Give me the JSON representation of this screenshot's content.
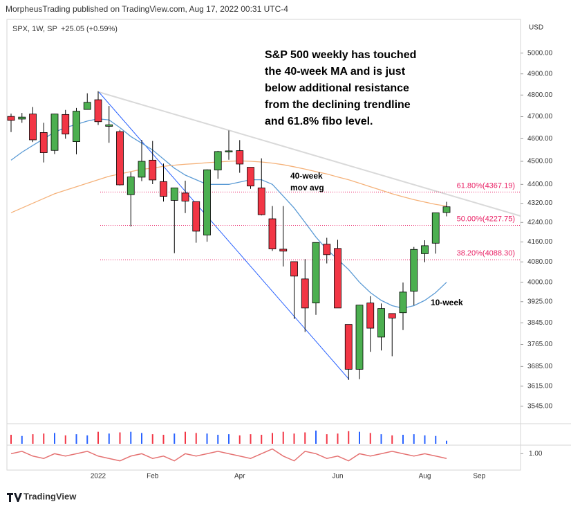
{
  "header": {
    "publisher": "MorpheusTrading published on TradingView.com, Aug 17, 2022 00:31 UTC-4",
    "symbol": "SPX, 1W, SP",
    "change": "+25.05 (+0.59%)",
    "currency": "USD",
    "footer": "TradingView"
  },
  "chart_data": {
    "type": "candlestick",
    "log_scale": true,
    "categories": [
      null,
      null,
      null,
      null,
      null,
      null,
      null,
      null,
      "2022",
      null,
      null,
      null,
      null,
      "Feb",
      null,
      null,
      null,
      null,
      null,
      null,
      null,
      "Apr",
      null,
      null,
      null,
      null,
      null,
      null,
      null,
      null,
      "Jun",
      null,
      null,
      null,
      null,
      null,
      null,
      null,
      "Aug",
      null,
      null,
      null,
      null,
      "Sep"
    ],
    "open": [
      4701,
      4689,
      4712,
      4628,
      4548,
      4710,
      4587,
      4733,
      4778,
      4656,
      4632,
      4356,
      4431,
      4505,
      4412,
      4332,
      4363,
      4327,
      4188,
      4462,
      4541,
      4547,
      4474,
      4385,
      4255,
      4131,
      4081,
      4013,
      3920,
      4151,
      4134,
      3839,
      3675,
      3920,
      3792,
      3880,
      3883,
      3965,
      4113,
      4155,
      4281,
      null,
      null,
      null
    ],
    "high": [
      4714,
      4717,
      4744,
      4672,
      4713,
      4731,
      4740,
      4808,
      4818,
      4749,
      4640,
      4453,
      4595,
      4590,
      4490,
      4385,
      4416,
      4327,
      4465,
      4546,
      4637,
      4594,
      4471,
      4513,
      4308,
      4308,
      4082,
      4091,
      4158,
      4177,
      4169,
      3838,
      3913,
      3946,
      3918,
      3880,
      3999,
      4140,
      4167,
      4280,
      4326,
      null,
      null,
      null
    ],
    "low": [
      4630,
      4672,
      4585,
      4495,
      4532,
      4600,
      4531,
      4733,
      4662,
      4582,
      4395,
      4223,
      4414,
      4401,
      4327,
      4115,
      4279,
      4157,
      4161,
      4424,
      4507,
      4450,
      4381,
      4269,
      4124,
      4062,
      3859,
      3811,
      3875,
      4074,
      3901,
      3637,
      3640,
      3738,
      3743,
      3722,
      3818,
      3911,
      4079,
      4113,
      4265,
      null,
      null,
      null
    ],
    "close": [
      4683,
      4698,
      4595,
      4538,
      4712,
      4621,
      4725,
      4766,
      4677,
      4663,
      4398,
      4432,
      4500,
      4419,
      4349,
      4385,
      4329,
      4204,
      4463,
      4543,
      4546,
      4488,
      4393,
      4272,
      4132,
      4123,
      4024,
      3901,
      4158,
      4109,
      3901,
      3675,
      3912,
      3825,
      3899,
      3863,
      3962,
      4130,
      4145,
      4280,
      4305,
      null,
      null,
      null
    ],
    "up_color": "#4caf50",
    "down_color": "#f23645",
    "series": [
      {
        "name": "10-week",
        "color": "#5b9bd5",
        "values": [
          4505,
          4540,
          4570,
          4600,
          4630,
          4650,
          4665,
          4680,
          4690,
          4685,
          4650,
          4610,
          4580,
          4550,
          4510,
          4470,
          4440,
          4420,
          4400,
          4400,
          4400,
          4410,
          4420,
          4420,
          4400,
          4350,
          4300,
          4240,
          4180,
          4130,
          4090,
          4050,
          4000,
          3960,
          3930,
          3910,
          3900,
          3910,
          3930,
          3960,
          4000,
          null,
          null,
          null
        ]
      },
      {
        "name": "40-week",
        "color": "#f5b27a",
        "values": [
          4280,
          4300,
          4320,
          4340,
          4360,
          4375,
          4390,
          4405,
          4420,
          4435,
          4445,
          4455,
          4465,
          4470,
          4478,
          4483,
          4487,
          4490,
          4494,
          4497,
          4500,
          4502,
          4500,
          4497,
          4492,
          4485,
          4476,
          4466,
          4455,
          4445,
          4432,
          4420,
          4405,
          4390,
          4375,
          4360,
          4347,
          4335,
          4325,
          4315,
          4308,
          null,
          null,
          null
        ]
      }
    ],
    "ma_labels": [
      "40-week",
      "mov avg",
      "10-week"
    ],
    "annotation": [
      "S&P 500 weekly has touched",
      "the 40-week MA and is just",
      "below additional resistance",
      "from the declining trendline",
      "and 61.8% fibo level."
    ],
    "fib_levels": [
      {
        "value": 4367.19,
        "label": "61.80%(4367.19)"
      },
      {
        "value": 4227.75,
        "label": "50.00%(4227.75)"
      },
      {
        "value": 4088.3,
        "label": "38.20%(4088.30)"
      }
    ],
    "fib_color": "#e91e63",
    "ylim": [
      3490,
      5160
    ],
    "yticks": [
      {
        "value": 3545,
        "label": "3545.00"
      },
      {
        "value": 3615,
        "label": "3615.00"
      },
      {
        "value": 3685,
        "label": "3685.00"
      },
      {
        "value": 3765,
        "label": "3765.00"
      },
      {
        "value": 3845,
        "label": "3845.00"
      },
      {
        "value": 3925,
        "label": "3925.00"
      },
      {
        "value": 4000,
        "label": "4000.00"
      },
      {
        "value": 4080,
        "label": "4080.00"
      },
      {
        "value": 4160,
        "label": "4160.00"
      },
      {
        "value": 4240,
        "label": "4240.00"
      },
      {
        "value": 4320,
        "label": "4320.00"
      },
      {
        "value": 4400,
        "label": "4400.00"
      },
      {
        "value": 4500,
        "label": "4500.00"
      },
      {
        "value": 4600,
        "label": "4600.00"
      },
      {
        "value": 4700,
        "label": "4700.00"
      },
      {
        "value": 4800,
        "label": "4800.00"
      },
      {
        "value": 4900,
        "label": "4900.00"
      },
      {
        "value": 5000,
        "label": "5000.00"
      }
    ],
    "volume": {
      "values": [
        15,
        13,
        16,
        17,
        18,
        14,
        16,
        14,
        20,
        17,
        19,
        20,
        18,
        16,
        15,
        17,
        20,
        18,
        17,
        15,
        16,
        14,
        16,
        15,
        18,
        20,
        17,
        19,
        22,
        16,
        17,
        21,
        20,
        18,
        16,
        14,
        15,
        16,
        14,
        13,
        5,
        null,
        null,
        null
      ],
      "ylim": [
        0,
        30
      ],
      "up_color": "#2962ff",
      "down_color": "#f23645"
    },
    "indicator": {
      "color": "#e57373",
      "values": [
        1.0,
        1.01,
        0.99,
        0.98,
        1.0,
        0.99,
        1.0,
        1.01,
        0.99,
        0.98,
        0.97,
        0.99,
        1.0,
        0.98,
        0.99,
        0.97,
        1.0,
        0.99,
        1.0,
        1.01,
        1.0,
        0.99,
        0.98,
        1.0,
        1.02,
        0.99,
        0.97,
        1.01,
        1.0,
        0.98,
        0.99,
        0.97,
        1.0,
        0.99,
        1.0,
        1.01,
        1.0,
        0.99,
        1.0,
        0.99,
        0.98,
        null,
        null,
        null
      ],
      "ylim": [
        0.94,
        1.03
      ],
      "yticks": [
        {
          "value": 1,
          "label": "1.00"
        }
      ]
    }
  }
}
